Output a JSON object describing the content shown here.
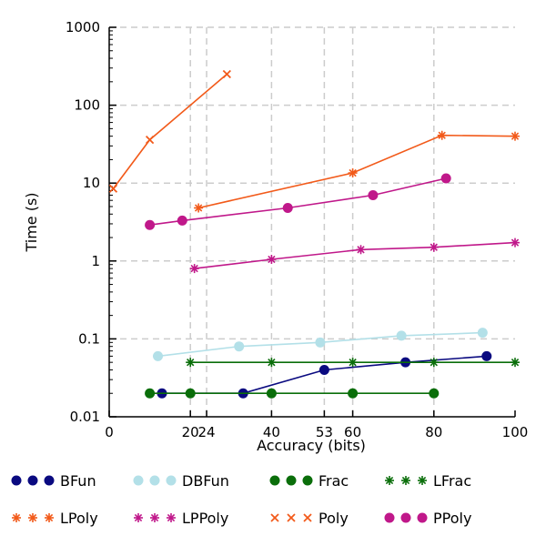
{
  "chart_data": {
    "type": "line",
    "title": "",
    "xlabel": "Accuracy (bits)",
    "ylabel": "Time (s)",
    "xlim": [
      0,
      100
    ],
    "ylim": [
      0.01,
      1000
    ],
    "yscale": "log",
    "grid": "dashed",
    "legend_placement": "bottom",
    "x_ticks": [
      0,
      20,
      24,
      40,
      53,
      60,
      80,
      100
    ],
    "y_ticks": [
      {
        "value": 0.01,
        "label": "0.01"
      },
      {
        "value": 0.1,
        "label": "0.1"
      },
      {
        "value": 1,
        "label": "1"
      },
      {
        "value": 10,
        "label": "10"
      },
      {
        "value": 100,
        "label": "100"
      },
      {
        "value": 1000,
        "label": "1000"
      }
    ],
    "series": [
      {
        "name": "BFun",
        "color": "#0a0a80",
        "marker": "circle",
        "x": [
          13,
          33,
          53,
          73,
          93
        ],
        "y": [
          0.02,
          0.02,
          0.04,
          0.05,
          0.06
        ]
      },
      {
        "name": "DBFun",
        "color": "#b3e0e8",
        "marker": "circle",
        "x": [
          12,
          32,
          52,
          72,
          92
        ],
        "y": [
          0.06,
          0.08,
          0.09,
          0.11,
          0.12
        ]
      },
      {
        "name": "Frac",
        "color": "#0a6e0a",
        "marker": "circle",
        "x": [
          10,
          20,
          40,
          60,
          80
        ],
        "y": [
          0.02,
          0.02,
          0.02,
          0.02,
          0.02
        ]
      },
      {
        "name": "LFrac",
        "color": "#0a6e0a",
        "marker": "asterisk",
        "x": [
          20,
          40,
          60,
          80,
          100
        ],
        "y": [
          0.05,
          0.05,
          0.05,
          0.05,
          0.05
        ]
      },
      {
        "name": "LPoly",
        "color": "#f25a1a",
        "marker": "asterisk",
        "x": [
          22,
          60,
          82,
          100
        ],
        "y": [
          4.8,
          13.5,
          41,
          40
        ]
      },
      {
        "name": "LPPoly",
        "color": "#c0188a",
        "marker": "asterisk",
        "x": [
          21,
          40,
          62,
          80,
          100
        ],
        "y": [
          0.8,
          1.05,
          1.4,
          1.5,
          1.72
        ]
      },
      {
        "name": "Poly",
        "color": "#f25a1a",
        "marker": "x",
        "x": [
          1,
          10,
          29
        ],
        "y": [
          8.5,
          36,
          250
        ]
      },
      {
        "name": "PPoly",
        "color": "#c0188a",
        "marker": "circle",
        "x": [
          10,
          18,
          44,
          65,
          83
        ],
        "y": [
          2.9,
          3.3,
          4.8,
          7.0,
          11.5
        ]
      }
    ]
  }
}
